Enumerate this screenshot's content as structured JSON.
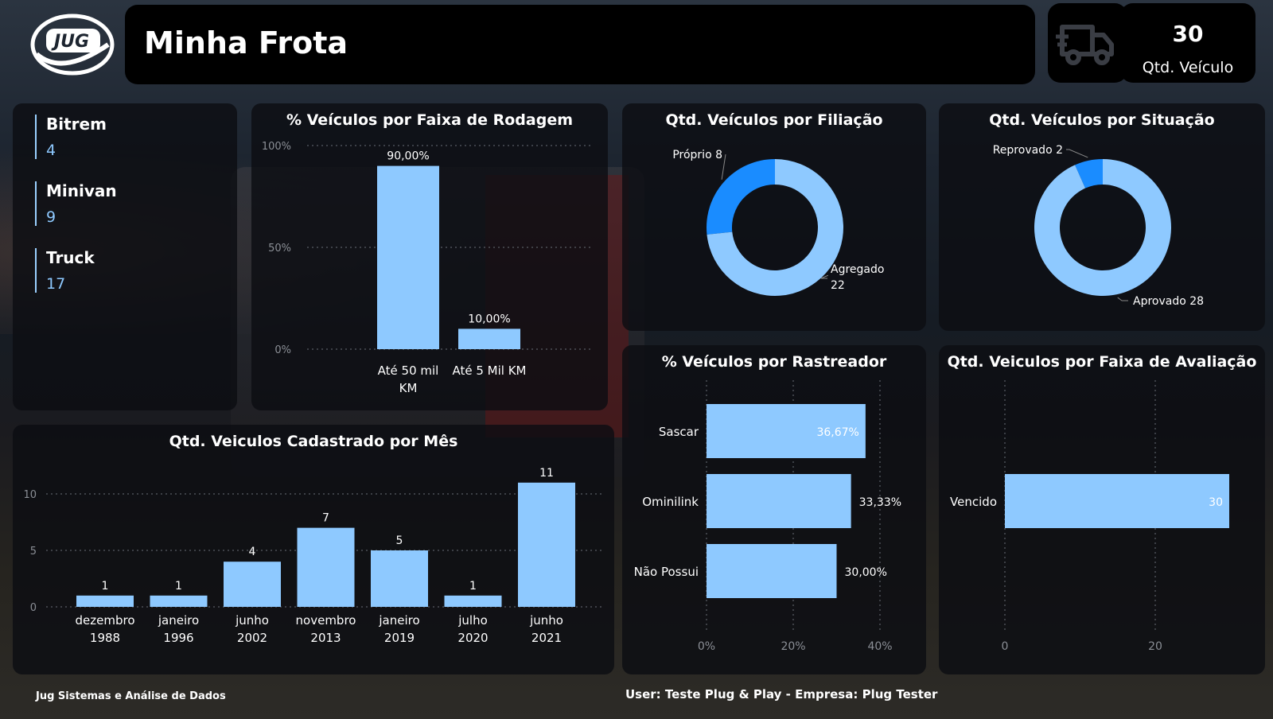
{
  "brand": {
    "logo_text": "JUG"
  },
  "header": {
    "title": "Minha Frota"
  },
  "kpi": {
    "icon": "truck-icon",
    "value": "30",
    "label": "Qtd. Veículo"
  },
  "categories": [
    {
      "name": "Bitrem",
      "value": "4"
    },
    {
      "name": "Minivan",
      "value": "9"
    },
    {
      "name": "Truck",
      "value": "17"
    }
  ],
  "footer": {
    "left": "Jug Sistemas e Análise de Dados",
    "right": "User: Teste Plug & Play - Empresa: Plug Tester"
  },
  "colors": {
    "bar": "#8ec9ff",
    "accent": "#1a8cff",
    "panel": "#0c0e12"
  },
  "chart_data": [
    {
      "id": "faixa-rodagem",
      "type": "bar",
      "title": "% Veículos por Faixa de Rodagem",
      "categories": [
        "Até 50 mil KM",
        "Até 5 Mil KM"
      ],
      "values": [
        90,
        10
      ],
      "data_labels": [
        "90,00%",
        "10,00%"
      ],
      "yticks": [
        "100%",
        "50%",
        "0%"
      ],
      "ylim": [
        0,
        100
      ],
      "grid": true
    },
    {
      "id": "filiacao",
      "type": "pie",
      "title": "Qtd. Veículos por Filiação",
      "labels": [
        "Próprio",
        "Agregado"
      ],
      "values": [
        8,
        22
      ],
      "data_labels": [
        "Próprio 8",
        "Agregado 22"
      ],
      "colors": [
        "#1a8cff",
        "#8ec9ff"
      ]
    },
    {
      "id": "situacao",
      "type": "pie",
      "title": "Qtd. Veículos por Situação",
      "labels": [
        "Reprovado",
        "Aprovado"
      ],
      "values": [
        2,
        28
      ],
      "data_labels": [
        "Reprovado 2",
        "Aprovado 28"
      ],
      "colors": [
        "#1a8cff",
        "#8ec9ff"
      ]
    },
    {
      "id": "rastreador",
      "type": "bar",
      "orientation": "horizontal",
      "title": "% Veículos por Rastreador",
      "categories": [
        "Sascar",
        "Ominilink",
        "Não Possui"
      ],
      "values": [
        36.67,
        33.33,
        30.0
      ],
      "data_labels": [
        "36,67%",
        "33,33%",
        "30,00%"
      ],
      "xticks": [
        "0%",
        "20%",
        "40%"
      ],
      "xlim": [
        0,
        40
      ],
      "grid": true
    },
    {
      "id": "avaliacao",
      "type": "bar",
      "orientation": "horizontal",
      "title": "Qtd. Veiculos por Faixa de Avaliação",
      "categories": [
        "Vencido"
      ],
      "values": [
        30
      ],
      "data_labels": [
        "30"
      ],
      "xticks": [
        "0",
        "20"
      ],
      "xlim": [
        0,
        20
      ],
      "grid": true
    },
    {
      "id": "cadastro-mes",
      "type": "bar",
      "title": "Qtd. Veiculos Cadastrado por Mês",
      "categories": [
        [
          "dezembro",
          "1988"
        ],
        [
          "janeiro",
          "1996"
        ],
        [
          "junho",
          "2002"
        ],
        [
          "novembro",
          "2013"
        ],
        [
          "janeiro",
          "2019"
        ],
        [
          "julho",
          "2020"
        ],
        [
          "junho",
          "2021"
        ]
      ],
      "values": [
        1,
        1,
        4,
        7,
        5,
        1,
        11
      ],
      "data_labels": [
        "1",
        "1",
        "4",
        "7",
        "5",
        "1",
        "11"
      ],
      "yticks": [
        "10",
        "5",
        "0"
      ],
      "ylim": [
        0,
        10
      ],
      "grid": true
    }
  ]
}
